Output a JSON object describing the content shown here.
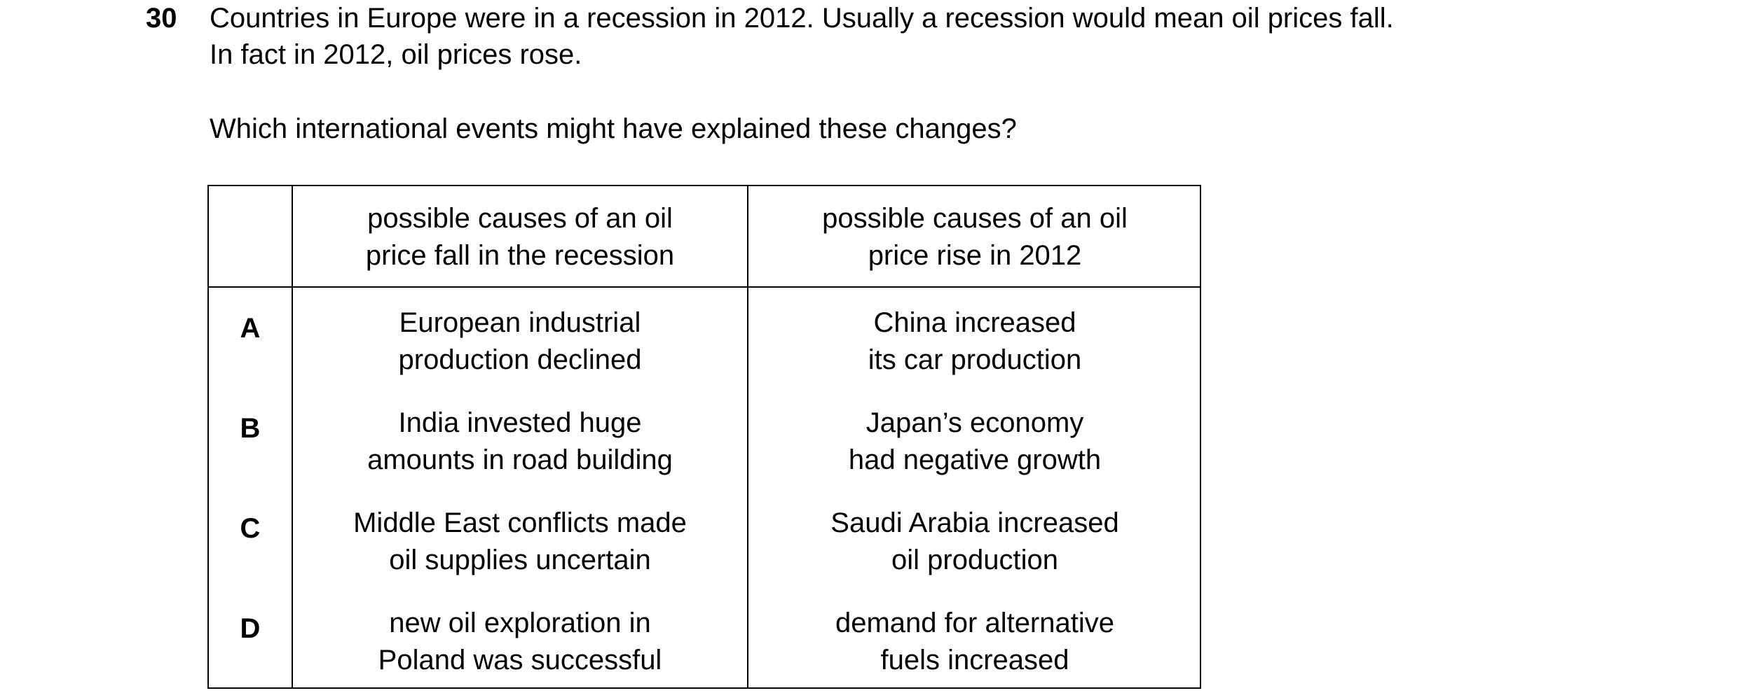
{
  "question": {
    "number": "30",
    "stem_line1": "Countries in Europe were in a recession in 2012. Usually a recession would mean oil prices fall.",
    "stem_line2": "In fact in 2012, oil prices rose.",
    "prompt": "Which international events might have explained these changes?"
  },
  "table": {
    "headers": {
      "fall": [
        "possible causes of an oil",
        "price fall in the recession"
      ],
      "rise": [
        "possible causes of an oil",
        "price rise in 2012"
      ]
    },
    "rows": [
      {
        "letter": "A",
        "fall": [
          "European industrial",
          "production declined"
        ],
        "rise": [
          "China increased",
          "its car production"
        ]
      },
      {
        "letter": "B",
        "fall": [
          "India invested huge",
          "amounts in road building"
        ],
        "rise": [
          "Japan’s economy",
          "had negative growth"
        ]
      },
      {
        "letter": "C",
        "fall": [
          "Middle East conflicts made",
          "oil supplies uncertain"
        ],
        "rise": [
          "Saudi Arabia increased",
          "oil production"
        ]
      },
      {
        "letter": "D",
        "fall": [
          "new oil exploration in",
          "Poland was successful"
        ],
        "rise": [
          "demand for alternative",
          "fuels increased"
        ]
      }
    ]
  }
}
